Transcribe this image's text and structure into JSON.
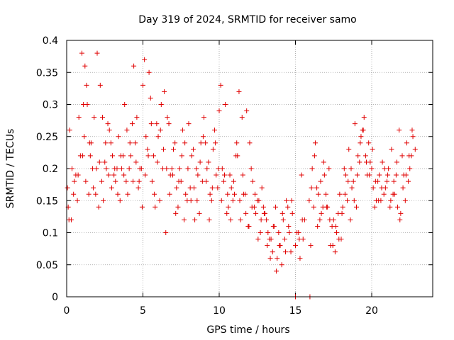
{
  "chart_data": {
    "type": "scatter",
    "title": "Day 319 of 2024, SRMTID for receiver samo",
    "xlabel": "GPS time / hours",
    "ylabel": "SRMTID / TECUs",
    "xlim": [
      0,
      24
    ],
    "ylim": [
      0,
      0.4
    ],
    "xticks": [
      0,
      5,
      10,
      15,
      20
    ],
    "xtick_labels": [
      "0",
      "5",
      "10",
      "15",
      "20"
    ],
    "yticks": [
      0,
      0.05,
      0.1,
      0.15,
      0.2,
      0.25,
      0.3,
      0.35,
      0.4
    ],
    "ytick_labels": [
      "0",
      "0.05",
      "0.1",
      "0.15",
      "0.2",
      "0.25",
      "0.3",
      "0.35",
      "0.4"
    ],
    "grid": true,
    "marker": "+",
    "color": "#e00000",
    "series": [
      {
        "name": "SRMTID",
        "x": [
          0.05,
          0.2,
          0.35,
          0.5,
          0.7,
          0.9,
          1.0,
          1.1,
          1.2,
          1.3,
          1.45,
          1.6,
          1.8,
          2.0,
          2.2,
          2.4,
          2.6,
          2.8,
          3.0,
          3.2,
          3.4,
          3.6,
          3.8,
          4.0,
          4.2,
          4.4,
          4.6,
          4.8,
          5.0,
          5.1,
          5.2,
          5.4,
          5.6,
          5.8,
          6.0,
          6.2,
          6.4,
          6.6,
          6.8,
          7.0,
          7.2,
          7.4,
          7.6,
          7.8,
          8.0,
          8.2,
          8.4,
          8.6,
          8.8,
          9.0,
          9.2,
          9.4,
          9.6,
          9.8,
          10.0,
          10.1,
          10.3,
          10.5,
          10.7,
          10.9,
          11.1,
          11.3,
          11.5,
          11.7,
          11.9,
          12.1,
          12.3,
          12.5,
          12.7,
          12.9,
          13.1,
          13.3,
          13.5,
          13.6,
          13.8,
          14.0,
          14.2,
          14.4,
          14.6,
          14.8,
          15.0,
          15.2,
          15.4,
          15.6,
          15.9,
          16.1,
          16.3,
          16.5,
          16.7,
          16.9,
          17.1,
          17.3,
          17.5,
          17.7,
          17.9,
          18.1,
          18.3,
          18.5,
          18.7,
          18.9,
          19.1,
          19.3,
          19.5,
          19.7,
          19.9,
          20.1,
          20.3,
          20.5,
          20.7,
          20.9,
          21.1,
          21.3,
          21.5,
          21.7,
          21.9,
          22.1,
          22.3,
          22.5,
          22.7,
          0.1,
          0.3,
          0.6,
          0.8,
          1.05,
          1.25,
          1.5,
          1.7,
          1.9,
          2.1,
          2.3,
          2.5,
          2.7,
          2.9,
          3.1,
          3.3,
          3.5,
          3.7,
          3.9,
          4.1,
          4.3,
          4.5,
          4.7,
          4.9,
          5.3,
          5.5,
          5.7,
          5.9,
          6.1,
          6.3,
          6.5,
          6.7,
          6.9,
          7.1,
          7.3,
          7.5,
          7.7,
          7.9,
          8.1,
          8.3,
          8.5,
          8.7,
          8.9,
          9.1,
          9.3,
          9.5,
          9.7,
          9.9,
          10.2,
          10.4,
          10.6,
          10.8,
          11.0,
          11.2,
          11.4,
          11.6,
          11.8,
          12.0,
          12.2,
          12.4,
          12.6,
          12.8,
          13.0,
          13.2,
          13.4,
          13.7,
          13.9,
          14.1,
          14.3,
          14.5,
          14.7,
          15.1,
          15.3,
          15.5,
          16.0,
          16.2,
          16.4,
          16.6,
          16.8,
          17.0,
          17.2,
          17.4,
          17.6,
          17.8,
          18.0,
          18.2,
          18.4,
          18.6,
          18.8,
          19.0,
          19.2,
          19.4,
          19.6,
          19.8,
          20.0,
          20.2,
          20.4,
          20.6,
          20.8,
          21.0,
          21.2,
          21.4,
          21.6,
          21.8,
          22.0,
          22.2,
          22.4,
          22.6,
          15.0,
          15.95,
          0.15,
          0.45,
          0.75,
          1.15,
          1.35,
          1.55,
          1.75,
          1.95,
          2.15,
          2.35,
          2.55,
          2.75,
          2.95,
          3.15,
          3.35,
          3.55,
          3.75,
          3.95,
          4.15,
          4.35,
          4.55,
          4.75,
          4.95,
          5.15,
          5.35,
          5.55,
          5.75,
          5.95,
          6.15,
          6.35,
          6.55,
          6.75,
          6.95,
          7.15,
          7.35,
          7.55,
          7.75,
          7.95,
          8.15,
          8.35,
          8.55,
          8.75,
          8.95,
          9.15,
          9.35,
          9.55,
          9.75,
          9.95,
          10.15,
          10.35,
          10.55,
          10.75,
          10.95,
          11.15,
          11.35,
          11.55,
          11.75,
          11.95,
          12.15,
          12.35,
          12.55,
          12.75,
          12.95,
          13.15,
          13.35,
          13.55,
          13.75,
          13.95,
          14.15,
          14.35,
          14.55,
          14.75,
          15.25,
          15.45,
          16.05,
          16.25,
          16.45,
          16.65,
          16.85,
          17.05,
          17.25,
          17.45,
          17.65,
          17.85,
          18.05,
          18.25,
          18.45,
          18.65,
          18.85,
          19.05,
          19.25,
          19.45,
          19.65,
          19.85,
          20.05,
          20.25,
          20.45,
          20.65,
          20.85,
          21.05,
          21.25,
          21.45,
          21.65,
          21.85,
          22.05,
          22.25,
          22.45,
          22.65,
          22.85
        ],
        "y": [
          0.17,
          0.26,
          0.2,
          0.18,
          0.15,
          0.22,
          0.38,
          0.3,
          0.36,
          0.33,
          0.16,
          0.24,
          0.28,
          0.38,
          0.33,
          0.15,
          0.2,
          0.26,
          0.22,
          0.18,
          0.25,
          0.2,
          0.3,
          0.16,
          0.22,
          0.36,
          0.28,
          0.2,
          0.33,
          0.37,
          0.25,
          0.35,
          0.18,
          0.14,
          0.25,
          0.3,
          0.32,
          0.28,
          0.19,
          0.23,
          0.17,
          0.2,
          0.26,
          0.16,
          0.27,
          0.22,
          0.12,
          0.19,
          0.24,
          0.28,
          0.2,
          0.16,
          0.23,
          0.19,
          0.29,
          0.33,
          0.18,
          0.13,
          0.19,
          0.15,
          0.22,
          0.32,
          0.28,
          0.16,
          0.11,
          0.2,
          0.14,
          0.15,
          0.1,
          0.14,
          0.12,
          0.09,
          0.07,
          0.11,
          0.06,
          0.08,
          0.12,
          0.15,
          0.1,
          0.13,
          0.08,
          0.1,
          0.19,
          0.12,
          0.15,
          0.2,
          0.24,
          0.16,
          0.13,
          0.19,
          0.14,
          0.08,
          0.12,
          0.1,
          0.16,
          0.14,
          0.19,
          0.23,
          0.17,
          0.27,
          0.22,
          0.25,
          0.28,
          0.19,
          0.21,
          0.17,
          0.15,
          0.19,
          0.21,
          0.17,
          0.2,
          0.23,
          0.16,
          0.14,
          0.13,
          0.19,
          0.24,
          0.2,
          0.25,
          0.14,
          0.12,
          0.19,
          0.28,
          0.22,
          0.18,
          0.24,
          0.2,
          0.16,
          0.14,
          0.18,
          0.21,
          0.27,
          0.24,
          0.19,
          0.2,
          0.15,
          0.22,
          0.18,
          0.2,
          0.27,
          0.24,
          0.17,
          0.2,
          0.23,
          0.31,
          0.22,
          0.27,
          0.15,
          0.2,
          0.1,
          0.27,
          0.2,
          0.24,
          0.14,
          0.18,
          0.12,
          0.15,
          0.17,
          0.23,
          0.2,
          0.13,
          0.18,
          0.24,
          0.21,
          0.15,
          0.26,
          0.17,
          0.2,
          0.3,
          0.14,
          0.17,
          0.16,
          0.22,
          0.12,
          0.16,
          0.29,
          0.24,
          0.18,
          0.13,
          0.15,
          0.17,
          0.13,
          0.1,
          0.09,
          0.14,
          0.1,
          0.05,
          0.09,
          0.14,
          0.07,
          0.1,
          0.06,
          0.09,
          0.08,
          0.14,
          0.17,
          0.12,
          0.14,
          0.16,
          0.2,
          0.11,
          0.07,
          0.13,
          0.09,
          0.2,
          0.15,
          0.12,
          0.18,
          0.14,
          0.21,
          0.26,
          0.22,
          0.24,
          0.2,
          0.14,
          0.18,
          0.15,
          0.16,
          0.18,
          0.14,
          0.16,
          0.19,
          0.26,
          0.22,
          0.15,
          0.18,
          0.22,
          0.0,
          0.0,
          0.12,
          0.16,
          0.19,
          0.25,
          0.3,
          0.22,
          0.17,
          0.2,
          0.21,
          0.28,
          0.24,
          0.19,
          0.17,
          0.2,
          0.16,
          0.22,
          0.19,
          0.26,
          0.24,
          0.18,
          0.21,
          0.18,
          0.14,
          0.19,
          0.22,
          0.27,
          0.16,
          0.21,
          0.26,
          0.23,
          0.2,
          0.16,
          0.19,
          0.13,
          0.18,
          0.22,
          0.24,
          0.2,
          0.15,
          0.17,
          0.15,
          0.21,
          0.25,
          0.18,
          0.12,
          0.17,
          0.24,
          0.2,
          0.15,
          0.19,
          0.16,
          0.12,
          0.18,
          0.24,
          0.15,
          0.19,
          0.13,
          0.11,
          0.14,
          0.16,
          0.09,
          0.12,
          0.13,
          0.08,
          0.06,
          0.11,
          0.04,
          0.08,
          0.13,
          0.07,
          0.11,
          0.15,
          0.09,
          0.12,
          0.17,
          0.22,
          0.11,
          0.18,
          0.21,
          0.14,
          0.12,
          0.08,
          0.11,
          0.09,
          0.13,
          0.16,
          0.18,
          0.2,
          0.15,
          0.19,
          0.24,
          0.26,
          0.21,
          0.19,
          0.23,
          0.18,
          0.15,
          0.17,
          0.2,
          0.19,
          0.15,
          0.18,
          0.21,
          0.12,
          0.17,
          0.19,
          0.22,
          0.26,
          0.23
        ]
      }
    ]
  }
}
